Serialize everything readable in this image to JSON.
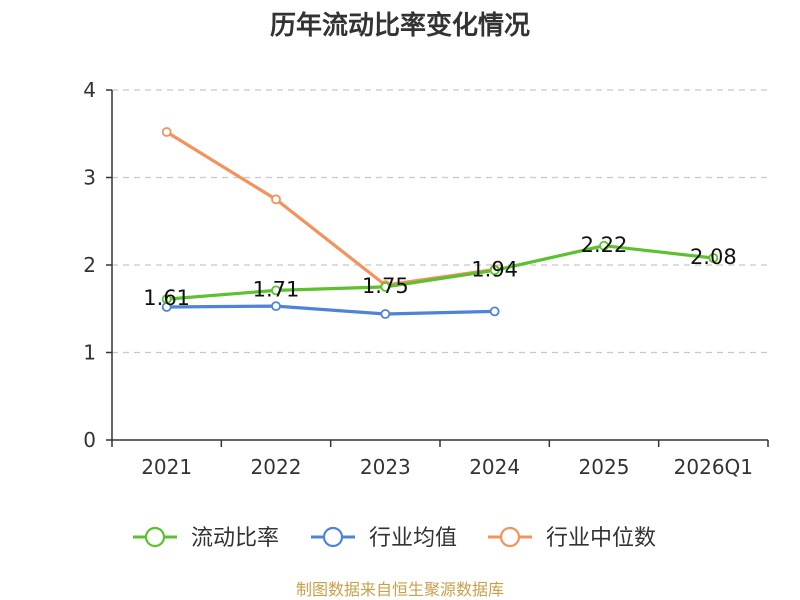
{
  "chart_data": {
    "type": "line",
    "title": "历年流动比率变化情况",
    "categories": [
      "2021",
      "2022",
      "2023",
      "2024",
      "2025",
      "2026Q1"
    ],
    "ylim": [
      0,
      4
    ],
    "yticks": [
      "0",
      "1",
      "2",
      "3",
      "4"
    ],
    "grid": true,
    "legend_position": "bottom",
    "series": [
      {
        "name": "流动比率",
        "color": "#5cc12e",
        "values": [
          1.61,
          1.71,
          1.75,
          1.94,
          2.22,
          2.08
        ],
        "labels": [
          "1.61",
          "1.71",
          "1.75",
          "1.94",
          "2.22",
          "2.08"
        ]
      },
      {
        "name": "行业均值",
        "color": "#4f83d8",
        "values": [
          1.52,
          1.53,
          1.44,
          1.47,
          null,
          null
        ]
      },
      {
        "name": "行业中位数",
        "color": "#f5915a",
        "values": [
          3.52,
          2.75,
          1.77,
          1.95,
          null,
          null
        ]
      }
    ],
    "source": "制图数据来自恒生聚源数据库",
    "source_color": "#c9a04a"
  }
}
